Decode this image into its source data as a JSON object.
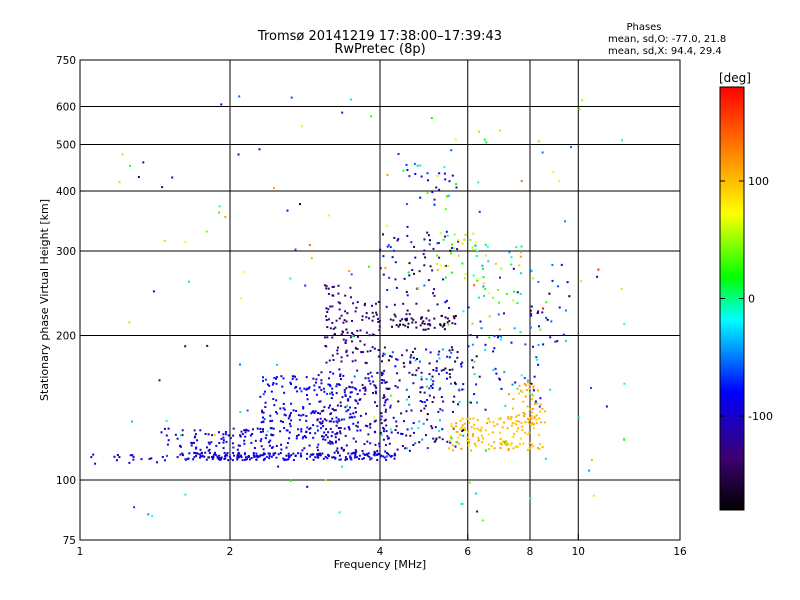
{
  "chart_data": {
    "type": "scatter",
    "title": "Tromsø 20141219 17:38:00–17:39:43",
    "subtitle": "RwPretec (8p)",
    "stats": {
      "heading": "Phases",
      "line_o": "mean, sd,O: -77.0, 21.8",
      "line_x": "mean, sd,X:  94.4, 29.4"
    },
    "xlabel": "Frequency [MHz]",
    "ylabel": "Stationary phase Virtual Height [km]",
    "x_scale": "log",
    "y_scale": "log",
    "xlim": [
      1,
      16
    ],
    "ylim": [
      75,
      750
    ],
    "x_ticks": [
      {
        "v": 1,
        "label": "1"
      },
      {
        "v": 2,
        "label": "2"
      },
      {
        "v": 4,
        "label": "4"
      },
      {
        "v": 6,
        "label": "6"
      },
      {
        "v": 8,
        "label": "8"
      },
      {
        "v": 10,
        "label": "10"
      },
      {
        "v": 16,
        "label": "16"
      }
    ],
    "x_gridlines": [
      2,
      4,
      6,
      8,
      10
    ],
    "y_ticks": [
      {
        "v": 75,
        "label": "75"
      },
      {
        "v": 100,
        "label": "100"
      },
      {
        "v": 200,
        "label": "200"
      },
      {
        "v": 300,
        "label": "300"
      },
      {
        "v": 400,
        "label": "400"
      },
      {
        "v": 500,
        "label": "500"
      },
      {
        "v": 600,
        "label": "600"
      },
      {
        "v": 750,
        "label": "750"
      }
    ],
    "y_gridlines": [
      100,
      200,
      300,
      400,
      500,
      600
    ],
    "grid": true,
    "colorbar": {
      "unit": "[deg]",
      "range": [
        -180,
        180
      ],
      "ticks": [
        {
          "v": 100,
          "label": "100"
        },
        {
          "v": 0,
          "label": "0"
        },
        {
          "v": -100,
          "label": "-100"
        }
      ],
      "colors": [
        "#000000",
        "#3c006e",
        "#0000ff",
        "#00ffff",
        "#00ff00",
        "#ffff00",
        "#ff8000",
        "#ff0000"
      ]
    },
    "clusters": [
      {
        "fmin": 1.55,
        "fmax": 4.3,
        "hmin": 110,
        "hmax": 114,
        "phase": -95,
        "sd": 18,
        "n": 220
      },
      {
        "fmin": 1.05,
        "fmax": 1.5,
        "hmin": 108,
        "hmax": 113,
        "phase": -100,
        "sd": 15,
        "n": 18
      },
      {
        "fmin": 1.45,
        "fmax": 3.4,
        "hmin": 115,
        "hmax": 128,
        "phase": -95,
        "sd": 18,
        "n": 140
      },
      {
        "fmin": 2.3,
        "fmax": 3.6,
        "hmin": 128,
        "hmax": 165,
        "phase": -90,
        "sd": 20,
        "n": 160
      },
      {
        "fmin": 3.0,
        "fmax": 4.2,
        "hmin": 112,
        "hmax": 170,
        "phase": -110,
        "sd": 22,
        "n": 170
      },
      {
        "fmin": 3.1,
        "fmax": 4.0,
        "hmin": 175,
        "hmax": 235,
        "phase": -130,
        "sd": 15,
        "n": 110
      },
      {
        "fmin": 3.1,
        "fmax": 3.6,
        "hmin": 240,
        "hmax": 255,
        "phase": -130,
        "sd": 10,
        "n": 14
      },
      {
        "fmin": 4.0,
        "fmax": 5.9,
        "hmin": 115,
        "hmax": 190,
        "phase": -100,
        "sd": 60,
        "n": 190
      },
      {
        "fmin": 4.2,
        "fmax": 5.7,
        "hmin": 205,
        "hmax": 222,
        "phase": -150,
        "sd": 30,
        "n": 60
      },
      {
        "fmin": 4.0,
        "fmax": 5.8,
        "hmin": 225,
        "hmax": 330,
        "phase": -110,
        "sd": 45,
        "n": 70
      },
      {
        "fmin": 4.5,
        "fmax": 5.7,
        "hmin": 370,
        "hmax": 460,
        "phase": -70,
        "sd": 60,
        "n": 28
      },
      {
        "fmin": 5.2,
        "fmax": 6.3,
        "hmin": 260,
        "hmax": 330,
        "phase": 60,
        "sd": 35,
        "n": 30
      },
      {
        "fmin": 5.5,
        "fmax": 8.5,
        "hmin": 115,
        "hmax": 135,
        "phase": 100,
        "sd": 12,
        "n": 130
      },
      {
        "fmin": 7.2,
        "fmax": 8.6,
        "hmin": 130,
        "hmax": 160,
        "phase": 105,
        "sd": 10,
        "n": 60
      },
      {
        "fmin": 6.0,
        "fmax": 8.4,
        "hmin": 140,
        "hmax": 230,
        "phase": -80,
        "sd": 60,
        "n": 60
      },
      {
        "fmin": 6.0,
        "fmax": 7.7,
        "hmin": 230,
        "hmax": 310,
        "phase": 20,
        "sd": 80,
        "n": 40
      },
      {
        "fmin": 8.0,
        "fmax": 9.6,
        "hmin": 190,
        "hmax": 290,
        "phase": -100,
        "sd": 80,
        "n": 30
      },
      {
        "fmin": 1.2,
        "fmax": 12.6,
        "hmin": 80,
        "hmax": 640,
        "phase": 0,
        "sd": 110,
        "n": 140
      }
    ]
  }
}
